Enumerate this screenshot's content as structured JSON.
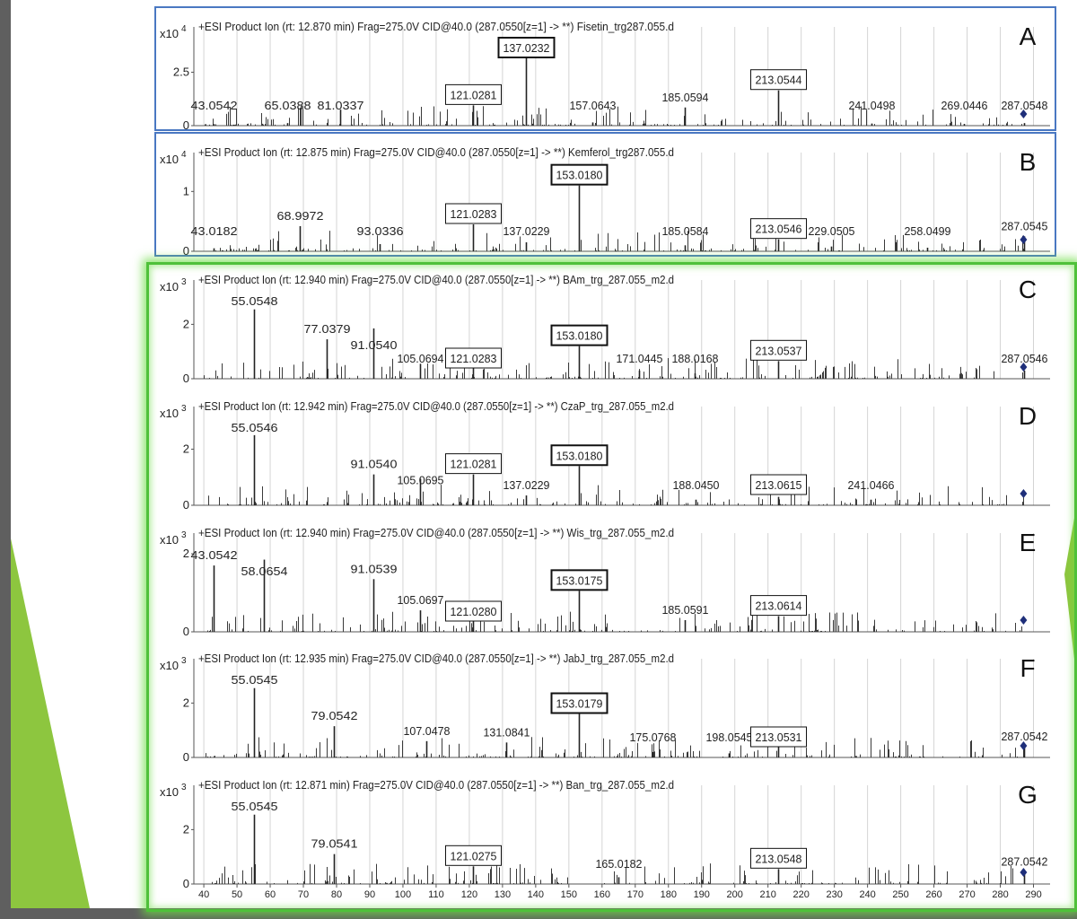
{
  "colors": {
    "peak": "#3a3a3a",
    "grid": "#d4d4d4",
    "axis": "#555555",
    "frame_blue": "#4a78c2",
    "frame_green": "#4fc13a",
    "accent": "#8dc63f",
    "marker": "#1f2f7a"
  },
  "x_axis": {
    "min": 37,
    "max": 295,
    "ticks": [
      40,
      50,
      60,
      70,
      80,
      90,
      100,
      110,
      120,
      130,
      140,
      150,
      160,
      170,
      180,
      190,
      200,
      210,
      220,
      230,
      240,
      250,
      260,
      270,
      280,
      290
    ]
  },
  "chart_data": [
    {
      "type": "bar",
      "panel_letter": "A",
      "scale_base": "x10",
      "scale_exp": "4",
      "header": "+ESI Product Ion (rt: 12.870 min) Frag=275.0V CID@40.0 (287.0550[z=1] -> **) Fisetin_trg287.055.d",
      "ylim": [
        0,
        4.2
      ],
      "yticks": [
        {
          "v": 0,
          "label": "0"
        },
        {
          "v": 2.5,
          "label": "2.5"
        }
      ],
      "peaks": [
        {
          "mz": 43.0542,
          "h": 0.07,
          "label": "43.0542",
          "boxed": false,
          "bold": false
        },
        {
          "mz": 65.0388,
          "h": 0.12,
          "label": "65.0388",
          "boxed": false,
          "bold": false
        },
        {
          "mz": 81.0337,
          "h": 0.75,
          "label": "81.0337",
          "boxed": false,
          "bold": false
        },
        {
          "mz": 121.0281,
          "h": 0.95,
          "label": "121.0281",
          "boxed": true,
          "bold": false
        },
        {
          "mz": 137.0232,
          "h": 3.3,
          "label": "137.0232",
          "boxed": true,
          "bold": true
        },
        {
          "mz": 157.0643,
          "h": 0.15,
          "label": "157.0643",
          "boxed": false,
          "bold": false
        },
        {
          "mz": 185.0594,
          "h": 0.85,
          "label": "185.0594",
          "boxed": false,
          "bold": false
        },
        {
          "mz": 213.0544,
          "h": 1.65,
          "label": "213.0544",
          "boxed": true,
          "bold": false
        },
        {
          "mz": 241.0498,
          "h": 0.1,
          "label": "241.0498",
          "boxed": false,
          "bold": false
        },
        {
          "mz": 269.0446,
          "h": 0.08,
          "label": "269.0446",
          "boxed": false,
          "bold": false
        },
        {
          "mz": 287.0548,
          "h": 0.12,
          "label": "287.0548",
          "boxed": false,
          "bold": false
        }
      ]
    },
    {
      "type": "bar",
      "panel_letter": "B",
      "scale_base": "x10",
      "scale_exp": "4",
      "header": "+ESI Product Ion (rt: 12.875 min) Frag=275.0V CID@40.0 (287.0550[z=1] -> **) Kemferol_trg287.055.d",
      "ylim": [
        0,
        1.5
      ],
      "yticks": [
        {
          "v": 0,
          "label": "0"
        },
        {
          "v": 1,
          "label": "1"
        }
      ],
      "peaks": [
        {
          "mz": 43.0182,
          "h": 0.05,
          "label": "43.0182",
          "boxed": false,
          "bold": false
        },
        {
          "mz": 68.9972,
          "h": 0.42,
          "label": "68.9972",
          "boxed": false,
          "bold": false
        },
        {
          "mz": 93.0336,
          "h": 0.12,
          "label": "93.0336",
          "boxed": false,
          "bold": false
        },
        {
          "mz": 121.0283,
          "h": 0.45,
          "label": "121.0283",
          "boxed": true,
          "bold": false
        },
        {
          "mz": 137.0229,
          "h": 0.15,
          "label": "137.0229",
          "boxed": false,
          "bold": false
        },
        {
          "mz": 153.018,
          "h": 1.1,
          "label": "153.0180",
          "boxed": true,
          "bold": true
        },
        {
          "mz": 185.0584,
          "h": 0.1,
          "label": "185.0584",
          "boxed": false,
          "bold": false
        },
        {
          "mz": 213.0546,
          "h": 0.2,
          "label": "213.0546",
          "boxed": true,
          "bold": false
        },
        {
          "mz": 229.0505,
          "h": 0.08,
          "label": "229.0505",
          "boxed": false,
          "bold": false
        },
        {
          "mz": 258.0499,
          "h": 0.06,
          "label": "258.0499",
          "boxed": false,
          "bold": false
        },
        {
          "mz": 287.0545,
          "h": 0.25,
          "label": "287.0545",
          "boxed": false,
          "bold": false
        }
      ]
    },
    {
      "type": "bar",
      "panel_letter": "C",
      "scale_base": "x10",
      "scale_exp": "3",
      "header": "+ESI Product Ion (rt: 12.940 min) Frag=275.0V CID@40.0 (287.0550[z=1] -> **) BAm_trg_287.055_m2.d",
      "ylim": [
        0,
        3.3
      ],
      "yticks": [
        {
          "v": 0,
          "label": "0"
        },
        {
          "v": 2,
          "label": "2"
        }
      ],
      "peaks": [
        {
          "mz": 55.0548,
          "h": 2.55,
          "label": "55.0548",
          "boxed": false,
          "bold": false
        },
        {
          "mz": 77.0379,
          "h": 1.45,
          "label": "77.0379",
          "boxed": false,
          "bold": false
        },
        {
          "mz": 91.054,
          "h": 1.85,
          "label": "91.0540",
          "boxed": false,
          "bold": false
        },
        {
          "mz": 105.0694,
          "h": 0.55,
          "label": "105.0694",
          "boxed": false,
          "bold": false
        },
        {
          "mz": 121.0283,
          "h": 0.55,
          "label": "121.0283",
          "boxed": true,
          "bold": false
        },
        {
          "mz": 153.018,
          "h": 1.2,
          "label": "153.0180",
          "boxed": true,
          "bold": true
        },
        {
          "mz": 171.0445,
          "h": 0.3,
          "label": "171.0445",
          "boxed": false,
          "bold": false
        },
        {
          "mz": 188.0168,
          "h": 0.2,
          "label": "188.0168",
          "boxed": false,
          "bold": false
        },
        {
          "mz": 213.0537,
          "h": 0.65,
          "label": "213.0537",
          "boxed": true,
          "bold": false
        },
        {
          "mz": 287.0546,
          "h": 0.3,
          "label": "287.0546",
          "boxed": false,
          "bold": false
        }
      ]
    },
    {
      "type": "bar",
      "panel_letter": "D",
      "scale_base": "x10",
      "scale_exp": "3",
      "header": "+ESI Product Ion (rt: 12.942 min) Frag=275.0V CID@40.0 (287.0550[z=1] -> **) CzaP_trg_287.055_m2.d",
      "ylim": [
        0,
        3.2
      ],
      "yticks": [
        {
          "v": 0,
          "label": "0"
        },
        {
          "v": 2,
          "label": "2"
        }
      ],
      "peaks": [
        {
          "mz": 55.0546,
          "h": 2.5,
          "label": "55.0546",
          "boxed": false,
          "bold": false
        },
        {
          "mz": 91.054,
          "h": 1.1,
          "label": "91.0540",
          "boxed": false,
          "bold": false
        },
        {
          "mz": 105.0695,
          "h": 0.95,
          "label": "105.0695",
          "boxed": false,
          "bold": false
        },
        {
          "mz": 121.0281,
          "h": 1.1,
          "label": "121.0281",
          "boxed": true,
          "bold": false
        },
        {
          "mz": 137.0229,
          "h": 0.35,
          "label": "137.0229",
          "boxed": false,
          "bold": false
        },
        {
          "mz": 153.018,
          "h": 1.4,
          "label": "153.0180",
          "boxed": true,
          "bold": true
        },
        {
          "mz": 188.045,
          "h": 0.2,
          "label": "188.0450",
          "boxed": false,
          "bold": false
        },
        {
          "mz": 213.0615,
          "h": 0.3,
          "label": "213.0615",
          "boxed": true,
          "bold": false
        },
        {
          "mz": 241.0466,
          "h": 0.2,
          "label": "241.0466",
          "boxed": false,
          "bold": false
        }
      ]
    },
    {
      "type": "bar",
      "panel_letter": "E",
      "scale_base": "x10",
      "scale_exp": "3",
      "header": "+ESI Product Ion (rt: 12.940 min) Frag=275.0V CID@40.0 (287.0550[z=1] -> **) Wis_trg_287.055_m2.d",
      "ylim": [
        0,
        2.3
      ],
      "yticks": [
        {
          "v": 0,
          "label": "0"
        },
        {
          "v": 2,
          "label": "2"
        }
      ],
      "peaks": [
        {
          "mz": 43.0542,
          "h": 1.7,
          "label": "43.0542",
          "boxed": false,
          "bold": false
        },
        {
          "mz": 58.0654,
          "h": 1.85,
          "label": "58.0654",
          "boxed": false,
          "bold": false
        },
        {
          "mz": 91.0539,
          "h": 1.35,
          "label": "91.0539",
          "boxed": false,
          "bold": false
        },
        {
          "mz": 105.0697,
          "h": 0.55,
          "label": "105.0697",
          "boxed": false,
          "bold": false
        },
        {
          "mz": 121.028,
          "h": 0.55,
          "label": "121.0280",
          "boxed": true,
          "bold": false
        },
        {
          "mz": 153.0175,
          "h": 1.05,
          "label": "153.0175",
          "boxed": true,
          "bold": true
        },
        {
          "mz": 185.0591,
          "h": 0.3,
          "label": "185.0591",
          "boxed": false,
          "bold": false
        },
        {
          "mz": 213.0614,
          "h": 0.4,
          "label": "213.0614",
          "boxed": true,
          "bold": false
        }
      ]
    },
    {
      "type": "bar",
      "panel_letter": "F",
      "scale_base": "x10",
      "scale_exp": "3",
      "header": "+ESI Product Ion (rt: 12.935 min) Frag=275.0V CID@40.0 (287.0550[z=1] -> **) JabJ_trg_287.055_m2.d",
      "ylim": [
        0,
        3.3
      ],
      "yticks": [
        {
          "v": 0,
          "label": "0"
        },
        {
          "v": 2,
          "label": "2"
        }
      ],
      "peaks": [
        {
          "mz": 55.0545,
          "h": 2.55,
          "label": "55.0545",
          "boxed": false,
          "bold": false
        },
        {
          "mz": 79.0542,
          "h": 1.15,
          "label": "79.0542",
          "boxed": false,
          "bold": false
        },
        {
          "mz": 107.0478,
          "h": 0.6,
          "label": "107.0478",
          "boxed": false,
          "bold": false
        },
        {
          "mz": 131.0841,
          "h": 0.55,
          "label": "131.0841",
          "boxed": false,
          "bold": false
        },
        {
          "mz": 153.0179,
          "h": 1.6,
          "label": "153.0179",
          "boxed": true,
          "bold": true
        },
        {
          "mz": 175.0768,
          "h": 0.2,
          "label": "175.0768",
          "boxed": false,
          "bold": false
        },
        {
          "mz": 198.0545,
          "h": 0.15,
          "label": "198.0545",
          "boxed": false,
          "bold": false
        },
        {
          "mz": 213.0531,
          "h": 0.4,
          "label": "213.0531",
          "boxed": true,
          "bold": false
        },
        {
          "mz": 287.0542,
          "h": 0.4,
          "label": "287.0542",
          "boxed": false,
          "bold": false
        }
      ]
    },
    {
      "type": "bar",
      "panel_letter": "G",
      "scale_base": "x10",
      "scale_exp": "3",
      "header": "+ESI Product Ion (rt: 12.871 min) Frag=275.0V CID@40.0 (287.0550[z=1] -> **) Ban_trg_287.055_m2.d",
      "ylim": [
        0,
        3.3
      ],
      "yticks": [
        {
          "v": 0,
          "label": "0"
        },
        {
          "v": 2,
          "label": "2"
        }
      ],
      "peaks": [
        {
          "mz": 55.0545,
          "h": 2.55,
          "label": "55.0545",
          "boxed": false,
          "bold": false
        },
        {
          "mz": 79.0541,
          "h": 1.1,
          "label": "79.0541",
          "boxed": false,
          "bold": false
        },
        {
          "mz": 121.0275,
          "h": 0.65,
          "label": "121.0275",
          "boxed": true,
          "bold": false
        },
        {
          "mz": 165.0182,
          "h": 0.25,
          "label": "165.0182",
          "boxed": false,
          "bold": false
        },
        {
          "mz": 213.0548,
          "h": 0.55,
          "label": "213.0548",
          "boxed": true,
          "bold": false
        },
        {
          "mz": 287.0542,
          "h": 0.45,
          "label": "287.0542",
          "boxed": false,
          "bold": false
        }
      ]
    }
  ]
}
